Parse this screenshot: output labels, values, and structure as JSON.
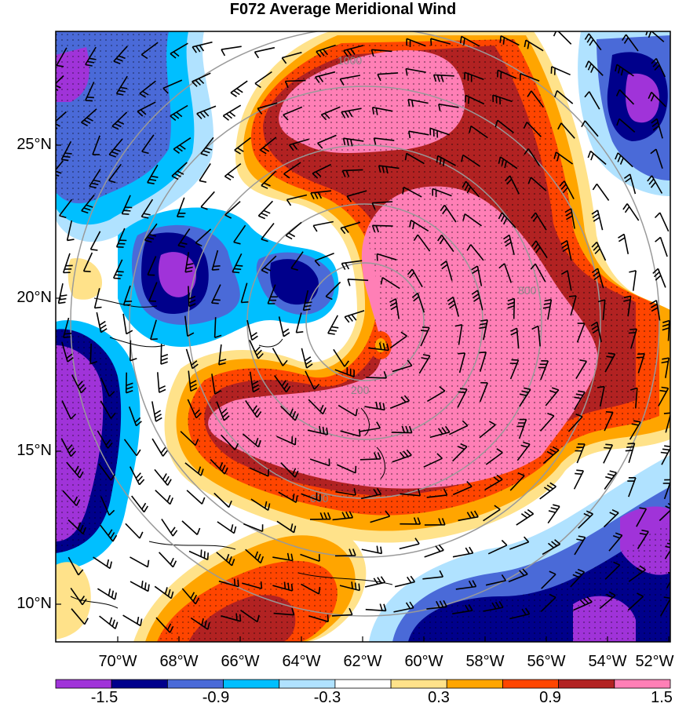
{
  "title": "F072 Average Meridional Wind",
  "map": {
    "lat_labels": [
      "25°N",
      "20°N",
      "15°N",
      "10°N"
    ],
    "lon_labels": [
      "70°W",
      "68°W",
      "66°W",
      "64°W",
      "62°W",
      "60°W",
      "58°W",
      "56°W",
      "54°W",
      "52°W"
    ],
    "range_ring_labels": [
      "200",
      "600",
      "800",
      "1000"
    ]
  },
  "colorbar": {
    "colors": [
      "#a033d9",
      "#00008b",
      "#4a6ad8",
      "#00bfff",
      "#b0e2ff",
      "#ffffff",
      "#ffe28a",
      "#ffa500",
      "#ff4500",
      "#b22222",
      "#ff7fb6"
    ],
    "tick_labels": [
      "-1.5",
      "-0.9",
      "-0.3",
      "0.3",
      "0.9",
      "1.5"
    ]
  },
  "chart_data": {
    "type": "heatmap",
    "title": "F072 Average Meridional Wind",
    "lon_range": [
      "71°W",
      "51°W"
    ],
    "lat_range": [
      "8.5°N",
      "28.5°N"
    ],
    "contour_levels": [
      -1.5,
      -1.2,
      -0.9,
      -0.6,
      -0.3,
      0.3,
      0.6,
      0.9,
      1.2,
      1.5
    ],
    "range_rings_km": [
      200,
      400,
      600,
      800,
      1000
    ],
    "overlays": [
      "wind barbs",
      "stippling",
      "coastlines"
    ]
  }
}
